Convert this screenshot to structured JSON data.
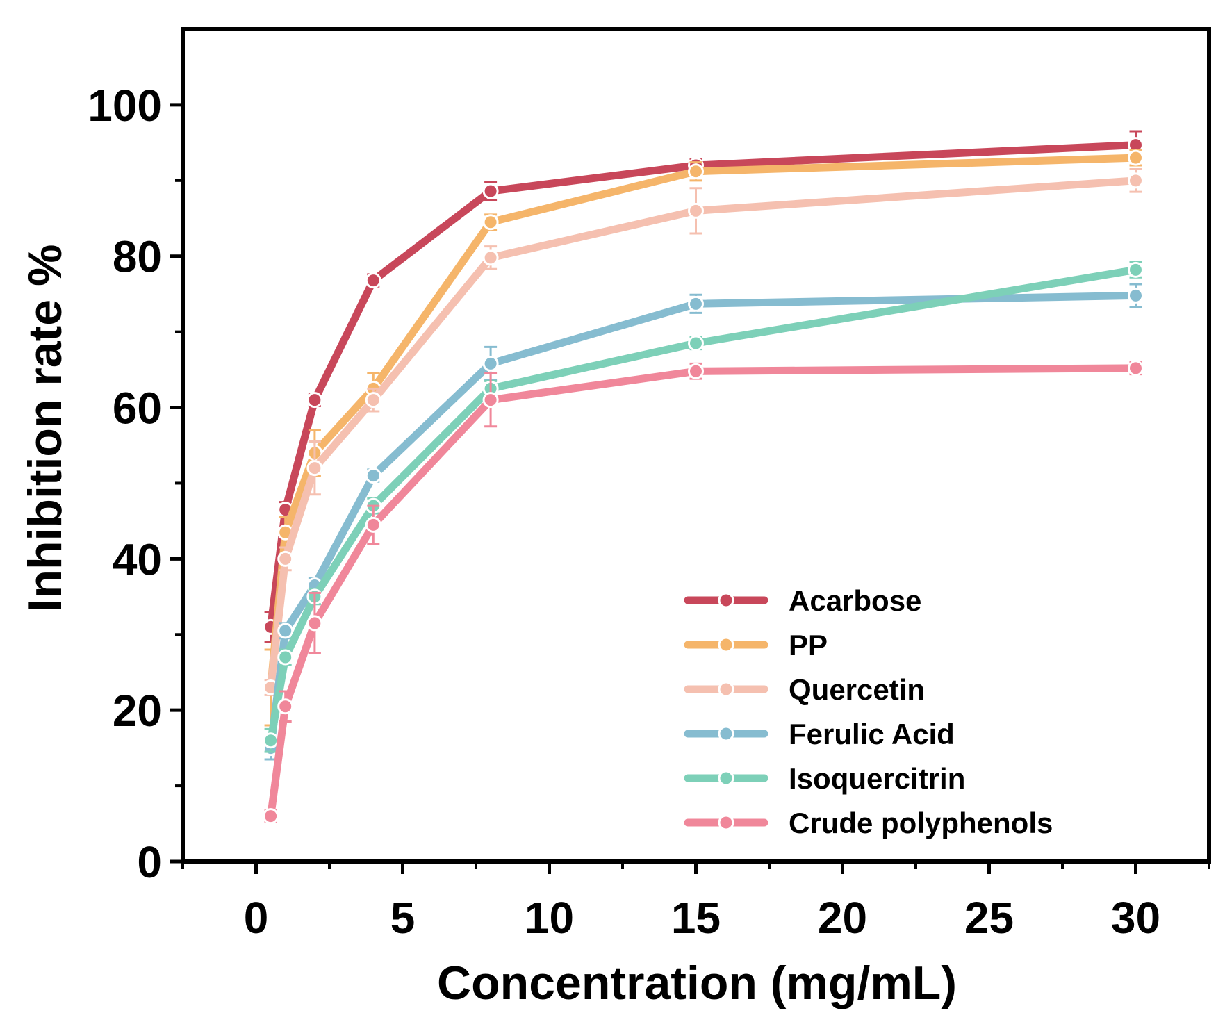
{
  "chart_data": {
    "type": "line",
    "xlabel": "Concentration (mg/mL)",
    "ylabel": "Inhibition rate %",
    "xlim": [
      -2.5,
      32.5
    ],
    "ylim": [
      0,
      110
    ],
    "x_ticks": [
      0,
      5,
      10,
      15,
      20,
      25,
      30
    ],
    "y_ticks": [
      0,
      20,
      40,
      60,
      80,
      100
    ],
    "x": [
      0.5,
      1,
      2,
      4,
      8,
      15,
      30
    ],
    "legend_position": "bottom-right",
    "grid": false,
    "series": [
      {
        "name": "Acarbose",
        "color": "#c8475a",
        "values": [
          31.0,
          46.5,
          61.0,
          76.8,
          88.6,
          92.0,
          94.7
        ],
        "errors": [
          2.0,
          1.0,
          0.8,
          0.8,
          1.2,
          0.8,
          1.8
        ]
      },
      {
        "name": "PP",
        "color": "#f5b56a",
        "values": [
          23.0,
          43.5,
          54.0,
          62.5,
          84.5,
          91.2,
          93.0
        ],
        "errors": [
          5.0,
          2.0,
          3.0,
          2.0,
          1.0,
          1.2,
          1.0
        ]
      },
      {
        "name": "Quercetin",
        "color": "#f5c0b0",
        "values": [
          23.0,
          40.0,
          52.0,
          61.0,
          79.8,
          86.0,
          90.0
        ],
        "errors": [
          1.0,
          1.5,
          3.5,
          1.5,
          1.5,
          3.0,
          1.5
        ]
      },
      {
        "name": "Ferulic Acid",
        "color": "#86bcd0",
        "values": [
          15.0,
          30.5,
          36.5,
          51.0,
          65.8,
          73.7,
          74.8
        ],
        "errors": [
          1.5,
          1.0,
          1.0,
          0.8,
          2.2,
          1.2,
          1.5
        ]
      },
      {
        "name": "Isoquercitrin",
        "color": "#7dd0b8",
        "values": [
          16.0,
          27.0,
          35.0,
          47.0,
          62.5,
          68.5,
          78.2
        ],
        "errors": [
          1.5,
          1.0,
          1.0,
          1.0,
          1.0,
          0.8,
          1.0
        ]
      },
      {
        "name": "Crude polyphenols",
        "color": "#f0879a",
        "values": [
          6.0,
          20.5,
          31.5,
          44.5,
          61.0,
          64.8,
          65.2
        ],
        "errors": [
          0.8,
          2.0,
          4.0,
          2.5,
          3.5,
          1.0,
          0.8
        ]
      }
    ]
  }
}
